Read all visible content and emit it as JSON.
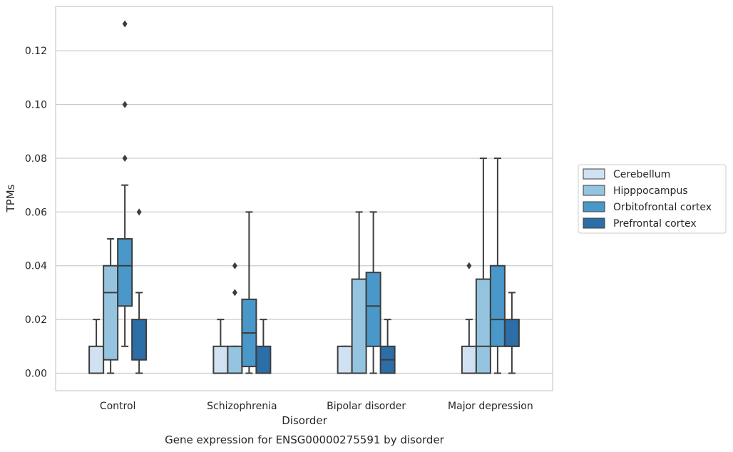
{
  "chart_data": {
    "type": "box",
    "caption": "Gene expression for ENSG00000275591 by disorder",
    "xlabel": "Disorder",
    "ylabel": "TPMs",
    "ylim": [
      -0.0065,
      0.1365
    ],
    "yticks": [
      "0.00",
      "0.02",
      "0.04",
      "0.06",
      "0.08",
      "0.10",
      "0.12"
    ],
    "ytick_values": [
      0.0,
      0.02,
      0.04,
      0.06,
      0.08,
      0.1,
      0.12
    ],
    "grid": "horizontal",
    "legend_position": "right",
    "categories": [
      "Control",
      "Schizophrenia",
      "Bipolar disorder",
      "Major depression"
    ],
    "series": [
      {
        "name": "Cerebellum",
        "color": "#d0e1f2",
        "boxes": [
          {
            "whislo": 0.0,
            "q1": 0.0,
            "med": 0.0,
            "q3": 0.01,
            "whishi": 0.02,
            "fliers": []
          },
          {
            "whislo": 0.0,
            "q1": 0.0,
            "med": 0.0,
            "q3": 0.01,
            "whishi": 0.02,
            "fliers": []
          },
          {
            "whislo": 0.0,
            "q1": 0.0,
            "med": 0.0,
            "q3": 0.01,
            "whishi": 0.01,
            "fliers": []
          },
          {
            "whislo": 0.0,
            "q1": 0.0,
            "med": 0.0,
            "q3": 0.01,
            "whishi": 0.02,
            "fliers": [
              0.04
            ]
          }
        ]
      },
      {
        "name": "Hipppocampus",
        "color": "#94c4df",
        "boxes": [
          {
            "whislo": 0.0,
            "q1": 0.005,
            "med": 0.03,
            "q3": 0.04,
            "whishi": 0.05,
            "fliers": []
          },
          {
            "whislo": 0.0,
            "q1": 0.0,
            "med": 0.0,
            "q3": 0.01,
            "whishi": 0.01,
            "fliers": [
              0.03,
              0.04
            ]
          },
          {
            "whislo": 0.0,
            "q1": 0.0,
            "med": 0.0,
            "q3": 0.035,
            "whishi": 0.06,
            "fliers": []
          },
          {
            "whislo": 0.0,
            "q1": 0.0,
            "med": 0.01,
            "q3": 0.035,
            "whishi": 0.08,
            "fliers": []
          }
        ]
      },
      {
        "name": "Orbitofrontal cortex",
        "color": "#4a98c9",
        "boxes": [
          {
            "whislo": 0.01,
            "q1": 0.025,
            "med": 0.04,
            "q3": 0.05,
            "whishi": 0.07,
            "fliers": [
              0.08,
              0.1,
              0.13
            ]
          },
          {
            "whislo": 0.0,
            "q1": 0.0025,
            "med": 0.015,
            "q3": 0.0275,
            "whishi": 0.06,
            "fliers": []
          },
          {
            "whislo": 0.0,
            "q1": 0.01,
            "med": 0.025,
            "q3": 0.0375,
            "whishi": 0.06,
            "fliers": []
          },
          {
            "whislo": 0.0,
            "q1": 0.01,
            "med": 0.02,
            "q3": 0.04,
            "whishi": 0.08,
            "fliers": []
          }
        ]
      },
      {
        "name": "Prefrontal cortex",
        "color": "#2b6ea8",
        "boxes": [
          {
            "whislo": 0.0,
            "q1": 0.005,
            "med": 0.005,
            "q3": 0.02,
            "whishi": 0.03,
            "fliers": [
              0.06
            ]
          },
          {
            "whislo": 0.0,
            "q1": 0.0,
            "med": 0.0,
            "q3": 0.01,
            "whishi": 0.02,
            "fliers": []
          },
          {
            "whislo": 0.0,
            "q1": 0.0,
            "med": 0.005,
            "q3": 0.01,
            "whishi": 0.02,
            "fliers": []
          },
          {
            "whislo": 0.0,
            "q1": 0.01,
            "med": 0.01,
            "q3": 0.02,
            "whishi": 0.03,
            "fliers": []
          }
        ]
      }
    ]
  }
}
